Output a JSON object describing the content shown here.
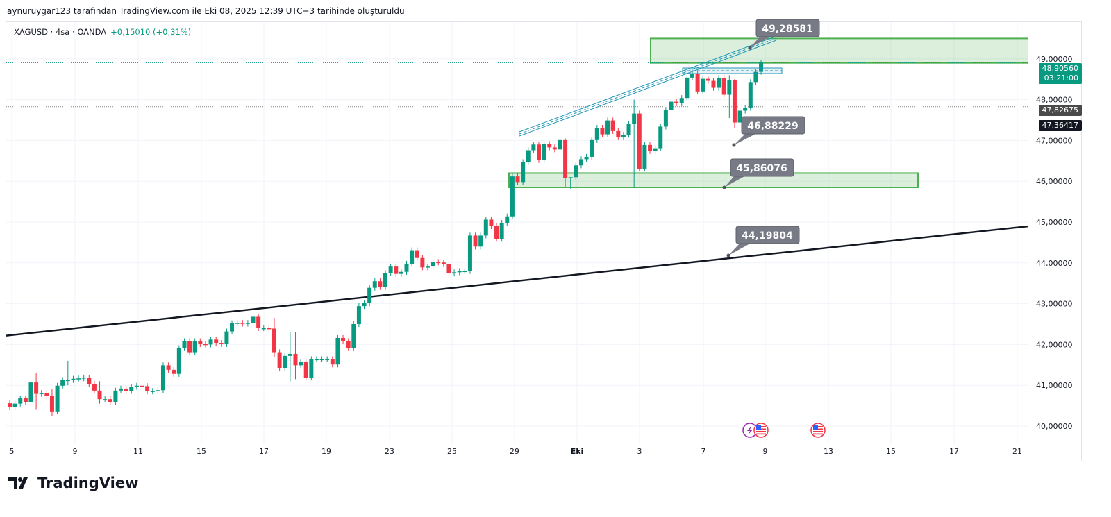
{
  "caption": "aynuruygar123 tarafından TradingView.com ile Eki 08, 2025 12:39 UTC+3 tarihinde oluşturuldu",
  "symbol": {
    "name": "XAGUSD · 4sa · OANDA",
    "change": "+0,15010 (+0,31%)"
  },
  "colors": {
    "up": "#089981",
    "down": "#f23645",
    "zone": "#4caf50",
    "channel": "#2196b6",
    "callout": "#787b86"
  },
  "price_axis": {
    "ticks": [
      "49,00000",
      "48,00000",
      "47,00000",
      "46,00000",
      "45,00000",
      "44,00000",
      "43,00000",
      "42,00000",
      "41,00000",
      "40,00000"
    ],
    "tick_values": [
      49,
      48,
      47,
      46,
      45,
      44,
      43,
      42,
      41,
      40
    ],
    "current_price": "48,90560",
    "current_value": 48.9056,
    "countdown": "03:21:00",
    "marker1": "47,82675",
    "marker1_value": 47.82675,
    "marker2": "47,36417"
  },
  "time_axis": {
    "labels": [
      "5",
      "9",
      "11",
      "15",
      "17",
      "19",
      "23",
      "25",
      "29",
      "Eki",
      "3",
      "7",
      "9",
      "13",
      "15",
      "17",
      "21"
    ]
  },
  "callouts": [
    {
      "label": "49,28581",
      "value": 49.28581
    },
    {
      "label": "46,88229",
      "value": 46.88229
    },
    {
      "label": "45,86076",
      "value": 45.86076
    },
    {
      "label": "44,19804",
      "value": 44.19804
    }
  ],
  "events": [
    "earnings-bolt-icon",
    "us-flag-icon",
    "us-flag-icon"
  ],
  "brand": "TradingView",
  "chart_data": {
    "type": "candlestick",
    "ylim": [
      40,
      49.6
    ],
    "first_open": 40.56,
    "closes": [
      40.46,
      40.55,
      40.68,
      40.59,
      41.07,
      40.79,
      40.81,
      40.74,
      40.36,
      40.99,
      41.13,
      41.13,
      41.16,
      41.17,
      41.19,
      41.03,
      40.87,
      40.66,
      40.66,
      40.58,
      40.87,
      40.92,
      40.86,
      40.96,
      40.99,
      40.98,
      40.85,
      40.86,
      40.88,
      41.49,
      41.38,
      41.28,
      41.91,
      42.08,
      41.81,
      42.08,
      42.01,
      42.0,
      42.12,
      42.04,
      42.01,
      42.32,
      42.52,
      42.53,
      42.51,
      42.53,
      42.68,
      42.4,
      42.4,
      42.39,
      41.81,
      41.42,
      41.72,
      41.77,
      41.49,
      41.57,
      41.19,
      41.64,
      41.64,
      41.64,
      41.64,
      41.51,
      42.16,
      42.08,
      41.91,
      42.5,
      42.94,
      43.01,
      43.39,
      43.55,
      43.41,
      43.75,
      43.91,
      43.73,
      43.78,
      43.98,
      44.31,
      44.12,
      43.89,
      43.91,
      44.02,
      44.01,
      43.97,
      43.74,
      43.77,
      43.8,
      43.8,
      44.67,
      44.4,
      44.67,
      45.06,
      44.9,
      44.59,
      44.98,
      45.14,
      46.12,
      45.98,
      46.47,
      46.76,
      46.9,
      46.52,
      46.91,
      46.83,
      46.78,
      47.01,
      46.08,
      46.1,
      46.39,
      46.54,
      46.6,
      47.01,
      47.31,
      47.15,
      47.49,
      47.23,
      47.08,
      47.14,
      47.41,
      47.66,
      46.31,
      46.89,
      46.74,
      46.81,
      47.34,
      47.75,
      47.95,
      47.91,
      48.04,
      48.54,
      48.63,
      48.2,
      48.51,
      48.46,
      48.29,
      48.53,
      48.12,
      48.47,
      47.44,
      47.73,
      47.8,
      48.43,
      48.68,
      48.9056
    ],
    "long_wicks": {
      "5": [
        41.3,
        40.4
      ],
      "8": [
        40.9,
        40.25
      ],
      "11": [
        41.6,
        41.0
      ],
      "17": [
        41.1,
        40.55
      ],
      "50": [
        42.65,
        41.7
      ],
      "53": [
        42.3,
        41.1
      ],
      "54": [
        42.3,
        41.15
      ],
      "105": [
        47.05,
        45.85
      ],
      "106": [
        46.1,
        45.82
      ],
      "118": [
        48.0,
        45.84
      ],
      "136": [
        48.6,
        47.55
      ],
      "137": [
        48.5,
        47.3
      ]
    },
    "trendline": {
      "from": [
        0,
        42.2
      ],
      "to": [
        1,
        44.9
      ]
    },
    "zones": [
      {
        "top": 49.5,
        "bottom": 48.9
      },
      {
        "top": 46.2,
        "bottom": 45.85
      }
    ]
  }
}
